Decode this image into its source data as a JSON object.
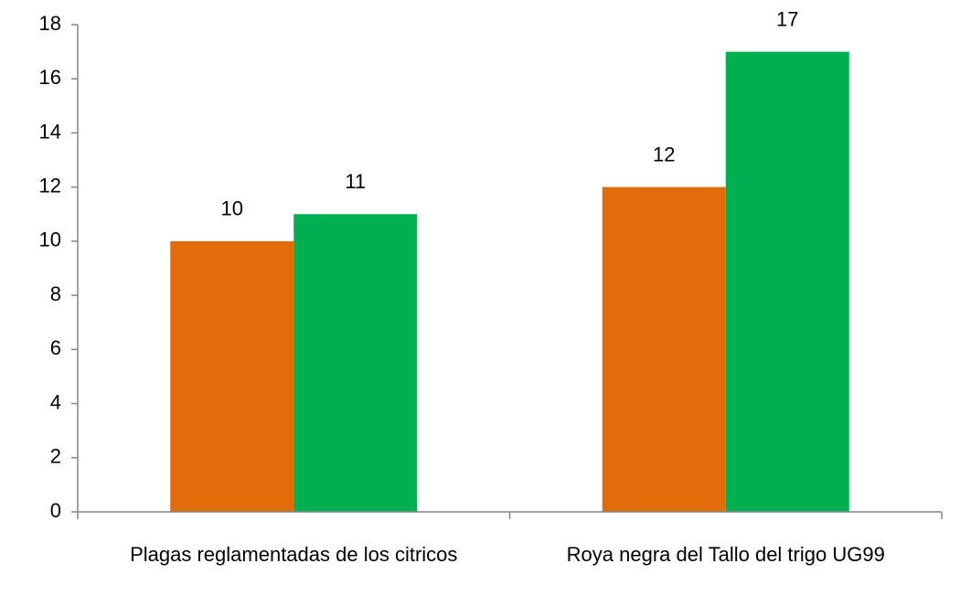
{
  "chart_data": {
    "type": "bar",
    "categories": [
      "Plagas reglamentadas de los citricos",
      "Roya negra del Tallo del trigo UG99"
    ],
    "series": [
      {
        "color": "#e36c0a",
        "values": [
          10,
          12
        ]
      },
      {
        "color": "#00b050",
        "values": [
          11,
          17
        ]
      }
    ],
    "ylim": [
      0,
      18
    ],
    "yticks": [
      0,
      2,
      4,
      6,
      8,
      10,
      12,
      14,
      16,
      18
    ],
    "grid": false
  }
}
